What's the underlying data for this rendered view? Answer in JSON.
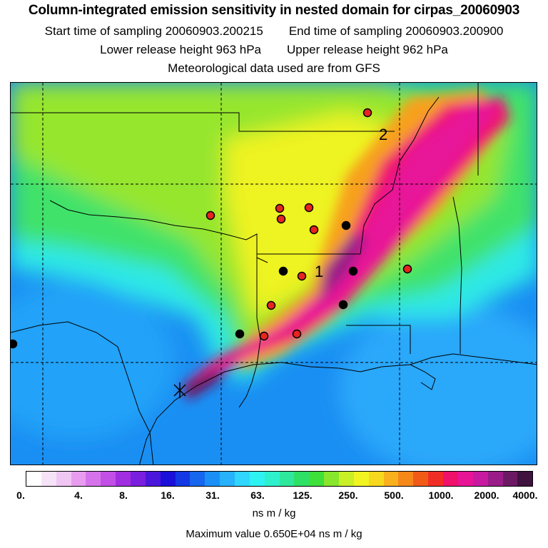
{
  "title": "Column-integrated emission sensitivity in nested domain for cirpas_20060903",
  "start_label": "Start time of sampling 20060903.200215",
  "end_label": "End time of sampling 20060903.200900",
  "lower_label": "Lower release height  963 hPa",
  "upper_label": "Upper release height  962 hPa",
  "met_label": "Meteorological data used are from GFS",
  "map": {
    "markers": [
      {
        "label": "1",
        "kind": "text"
      },
      {
        "label": "2",
        "kind": "text"
      }
    ]
  },
  "colorbar": {
    "colors": [
      "#ffffff",
      "#f7e3f7",
      "#f0c6f2",
      "#e89cef",
      "#d673ea",
      "#c24fe6",
      "#a12ee0",
      "#7a1fde",
      "#4a16dc",
      "#1a10da",
      "#1438e4",
      "#1766ee",
      "#1a90f6",
      "#27b2fb",
      "#30d6fd",
      "#2ff2f2",
      "#2ff0cc",
      "#2ee89c",
      "#2ee065",
      "#3ee03a",
      "#88e62c",
      "#c9ef26",
      "#f1f420",
      "#f7d81e",
      "#f8b11c",
      "#f6881a",
      "#f25a18",
      "#f02e26",
      "#f0126a",
      "#e81496",
      "#c71aa0",
      "#9a1c88",
      "#6c1964",
      "#40123e"
    ],
    "ticks": [
      "0.",
      "4.",
      "8.",
      "16.",
      "31.",
      "63.",
      "125.",
      "250.",
      "500.",
      "1000.",
      "2000.",
      "4000."
    ],
    "units": "ns m / kg"
  },
  "max_label": "Maximum value  0.650E+04 ns m / kg"
}
